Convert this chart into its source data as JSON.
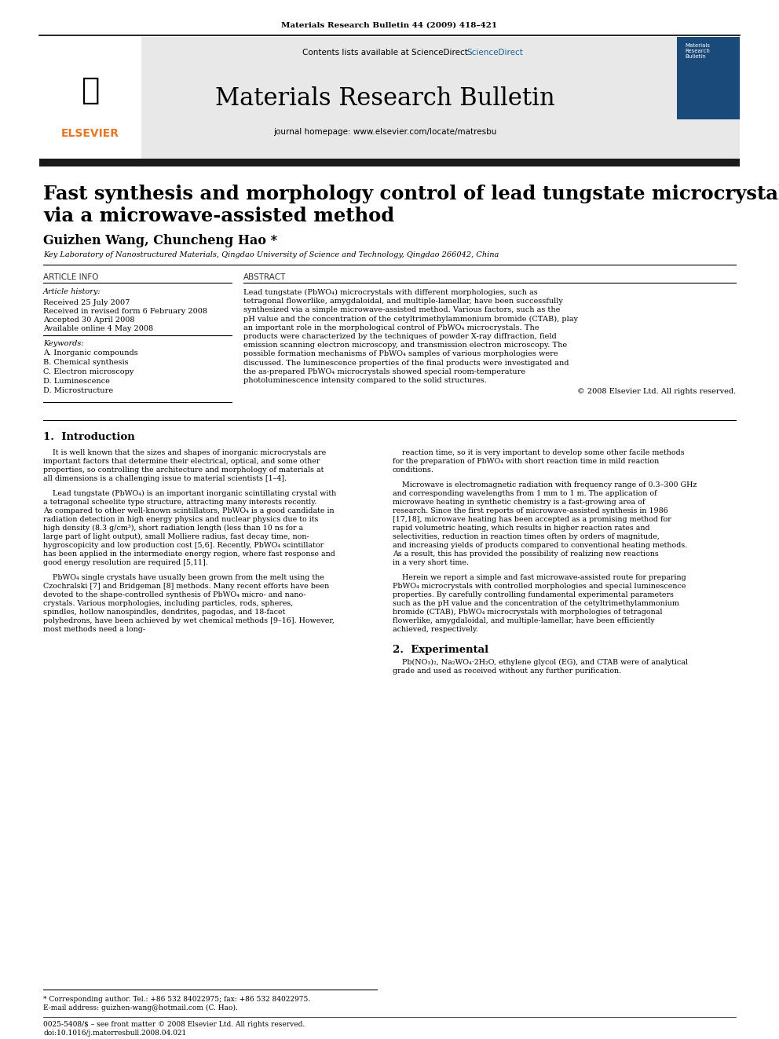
{
  "page_width": 9.92,
  "page_height": 13.23,
  "bg_color": "#ffffff",
  "journal_ref": "Materials Research Bulletin 44 (2009) 418–421",
  "contents_line": "Contents lists available at ScienceDirect",
  "journal_name": "Materials Research Bulletin",
  "journal_homepage": "journal homepage: www.elsevier.com/locate/matresbu",
  "sciencedirect_color": "#1a6496",
  "header_bg": "#e8e8e8",
  "header_bar_color": "#1a1a1a",
  "paper_title_line1": "Fast synthesis and morphology control of lead tungstate microcrystals",
  "paper_title_line2": "via a microwave-assisted method",
  "authors": "Guizhen Wang, Chuncheng Hao *",
  "affiliation": "Key Laboratory of Nanostructured Materials, Qingdao University of Science and Technology, Qingdao 266042, China",
  "article_info_label": "ARTICLE INFO",
  "abstract_label": "ABSTRACT",
  "article_history_label": "Article history:",
  "received1": "Received 25 July 2007",
  "received2": "Received in revised form 6 February 2008",
  "accepted": "Accepted 30 April 2008",
  "available": "Available online 4 May 2008",
  "keywords_label": "Keywords:",
  "keywords": [
    "A. Inorganic compounds",
    "B. Chemical synthesis",
    "C. Electron microscopy",
    "D. Luminescence",
    "D. Microstructure"
  ],
  "abstract_text": "Lead tungstate (PbWO₄) microcrystals with different morphologies, such as tetragonal flowerlike, amygdaloidal, and multiple-lamellar, have been successfully synthesized via a simple microwave-assisted method. Various factors, such as the pH value and the concentration of the cetyltrimethylammonium bromide (CTAB), play an important role in the morphological control of PbWO₄ microcrystals. The products were characterized by the techniques of powder X-ray diffraction, field emission scanning electron microscopy, and transmission electron microscopy. The possible formation mechanisms of PbWO₄ samples of various morphologies were discussed. The luminescence properties of the final products were investigated and the as-prepared PbWO₄ microcrystals showed special room-temperature photoluminescence intensity compared to the solid structures.",
  "copyright": "© 2008 Elsevier Ltd. All rights reserved.",
  "section1_title": "1.  Introduction",
  "section1_col1_para1": "It is well known that the sizes and shapes of inorganic microcrystals are important factors that determine their electrical, optical, and some other properties, so controlling the architecture and morphology of materials at all dimensions is a challenging issue to material scientists [1–4].",
  "section1_col1_para2": "Lead tungstate (PbWO₄) is an important inorganic scintillating crystal with a tetragonal scheelite type structure, attracting many interests recently. As compared to other well-known scintillators, PbWO₄ is a good candidate in radiation detection in high energy physics and nuclear physics due to its high density (8.3 g/cm³), short radiation length (less than 10 ns for a large part of light output), small Molliere radius, fast decay time, non-hygroscopicity and low production cost [5,6]. Recently, PbWO₄ scintillator has been applied in the intermediate energy region, where fast response and good energy resolution are required [5,11].",
  "section1_col1_para3": "PbWO₄ single crystals have usually been grown from the melt using the Czochralski [7] and Bridgeman [8] methods. Many recent efforts have been devoted to the shape-controlled synthesis of PbWO₄ micro- and nano-crystals. Various morphologies, including particles, rods, spheres, spindles, hollow nanospindles, dendrites, pagodas, and 18-facet polyhedrons, have been achieved by wet chemical methods [9–16]. However, most methods need a long-",
  "section1_col2_para1": "reaction time, so it is very important to develop some other facile methods for the preparation of PbWO₄ with short reaction time in mild reaction conditions.",
  "section1_col2_para2": "Microwave is electromagnetic radiation with frequency range of 0.3–300 GHz and corresponding wavelengths from 1 mm to 1 m. The application of microwave heating in synthetic chemistry is a fast-growing area of research. Since the first reports of microwave-assisted synthesis in 1986 [17,18], microwave heating has been accepted as a promising method for rapid volumetric heating, which results in higher reaction rates and selectivities, reduction in reaction times often by orders of magnitude, and increasing yields of products compared to conventional heating methods. As a result, this has provided the possibility of realizing new reactions in a very short time.",
  "section1_col2_para3": "Herein we report a simple and fast microwave-assisted route for preparing PbWO₄ microcrystals with controlled morphologies and special luminescence properties. By carefully controlling fundamental experimental parameters such as the pH value and the concentration of the cetyltrimethylammonium bromide (CTAB), PbWO₄ microcrystals with morphologies of tetragonal flowerlike, amygdaloidal, and multiple-lamellar, have been efficiently achieved, respectively.",
  "section2_title": "2.  Experimental",
  "section2_col2_para1": "Pb(NO₃)₂, Na₂WO₄·2H₂O, ethylene glycol (EG), and CTAB were of analytical grade and used as received without any further purification.",
  "footnote_star": "* Corresponding author. Tel.: +86 532 84022975; fax: +86 532 84022975.",
  "footnote_email": "E-mail address: guizhen-wang@hotmail.com (C. Hao).",
  "footer_left": "0025-5408/$ – see front matter © 2008 Elsevier Ltd. All rights reserved.",
  "footer_doi": "doi:10.1016/j.materresbull.2008.04.021"
}
